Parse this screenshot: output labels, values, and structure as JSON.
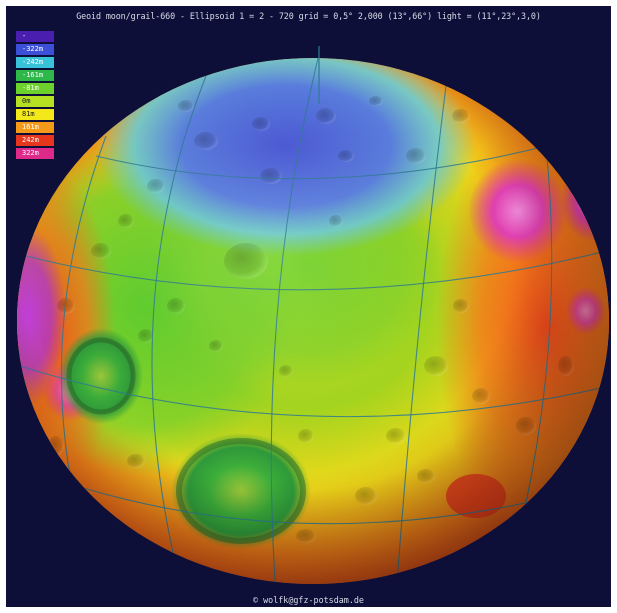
{
  "header": {
    "title": "Geoid moon/grail-660 - Ellipsoid 1 = 2 - 720 grid = 0,5° 2,000 (13°,66°) light = (11°,23°,3,0)"
  },
  "legend": {
    "items": [
      {
        "label": "-",
        "color": "#4a1fb0",
        "text_dark": false
      },
      {
        "label": "-322m",
        "color": "#3b4fd8",
        "text_dark": false
      },
      {
        "label": "-242m",
        "color": "#38c3d8",
        "text_dark": false
      },
      {
        "label": "-161m",
        "color": "#2fb84a",
        "text_dark": false
      },
      {
        "label": "-81m",
        "color": "#6cd12a",
        "text_dark": false
      },
      {
        "label": "0m",
        "color": "#b6e022",
        "text_dark": true
      },
      {
        "label": "81m",
        "color": "#f2e81a",
        "text_dark": true
      },
      {
        "label": "161m",
        "color": "#f59a18",
        "text_dark": false
      },
      {
        "label": "242m",
        "color": "#e8361c",
        "text_dark": false
      },
      {
        "label": "322m",
        "color": "#e02a8a",
        "text_dark": false
      }
    ]
  },
  "footer": {
    "credit": "© wolfk@gfz-potsdam.de"
  },
  "colors": {
    "background": "#0d0f38",
    "grid_lines": "#2f7a94"
  }
}
